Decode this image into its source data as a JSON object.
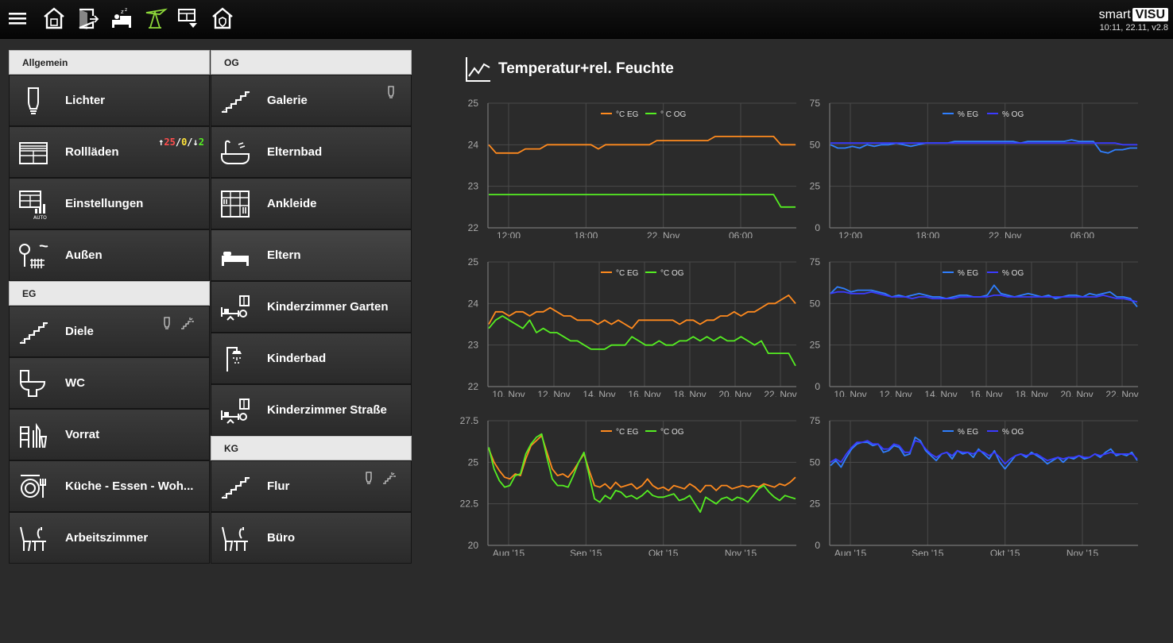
{
  "brand": {
    "word1": "smart",
    "word2": "VISU",
    "version": "10:11, 22.11, v2.8"
  },
  "nav_icons": [
    "menu-icon",
    "house-icon",
    "door-exit-icon",
    "bed-sleep-icon",
    "garden-umbrella-icon",
    "window-shutter-icon",
    "house-shield-icon"
  ],
  "accent": "#8ed93a",
  "columns": {
    "left": {
      "sections": [
        {
          "title": "Allgemein",
          "rooms": [
            {
              "label": "Lichter",
              "icon": "light-bulb-icon"
            },
            {
              "label": "Rollläden",
              "icon": "shutter-icon",
              "status": {
                "up": "↑",
                "up_val": "25",
                "sep1": "/",
                "mid_val": "0",
                "sep2": "/",
                "down": "↓",
                "down_val": "2"
              }
            },
            {
              "label": "Einstellungen",
              "icon": "shutter-auto-icon"
            },
            {
              "label": "Außen",
              "icon": "garden-icon"
            }
          ]
        },
        {
          "title": "EG",
          "rooms": [
            {
              "label": "Diele",
              "icon": "stairs-icon",
              "indicators": [
                "bulb-indicator-icon",
                "stairs-light-indicator-icon"
              ]
            },
            {
              "label": "WC",
              "icon": "toilet-icon"
            },
            {
              "label": "Vorrat",
              "icon": "storage-icon"
            },
            {
              "label": "Küche - Essen - Woh...",
              "icon": "kitchen-icon"
            },
            {
              "label": "Arbeitszimmer",
              "icon": "desk-icon"
            }
          ]
        }
      ]
    },
    "right": {
      "sections": [
        {
          "title": "OG",
          "rooms": [
            {
              "label": "Galerie",
              "icon": "stairs-icon",
              "indicators": [
                "bulb-indicator-icon"
              ]
            },
            {
              "label": "Elternbad",
              "icon": "bathtub-icon"
            },
            {
              "label": "Ankleide",
              "icon": "wardrobe-icon"
            },
            {
              "label": "Eltern",
              "icon": "bed-icon",
              "active": true
            },
            {
              "label": "Kinderzimmer Garten",
              "icon": "kids-room-icon"
            },
            {
              "label": "Kinderbad",
              "icon": "shower-icon"
            },
            {
              "label": "Kinderzimmer Straße",
              "icon": "kids-room-icon"
            }
          ]
        },
        {
          "title": "KG",
          "rooms": [
            {
              "label": "Flur",
              "icon": "stairs-icon",
              "indicators": [
                "bulb-indicator-icon",
                "stairs-light-indicator-icon"
              ]
            },
            {
              "label": "Büro",
              "icon": "desk-icon"
            }
          ]
        }
      ]
    }
  },
  "panel": {
    "title": "Temperatur+rel. Feuchte",
    "icon": "line-chart-icon"
  },
  "colors": {
    "eg_temp": "#ff8a1e",
    "og_temp": "#55ee22",
    "eg_hum": "#2f7fff",
    "og_hum": "#3b3bff",
    "grid": "#4a4a4a",
    "axis": "#777777",
    "tick": "#aaaaaa"
  },
  "chart_data": [
    {
      "type": "line",
      "title": "",
      "legend": [
        "°C EG",
        "° C OG"
      ],
      "legend_position": "top-center",
      "ylim": [
        22,
        25
      ],
      "yticks": [
        "22",
        "23",
        "24",
        "25"
      ],
      "xticks": [
        "12:00",
        "18:00",
        "22. Nov",
        "06:00"
      ],
      "grid": true,
      "series": [
        {
          "name": "°C EG",
          "values": [
            24,
            23.8,
            23.8,
            23.8,
            23.8,
            23.9,
            23.9,
            23.9,
            24,
            24,
            24,
            24,
            24,
            24,
            24,
            23.9,
            24,
            24,
            24,
            24,
            24,
            24,
            24,
            24.1,
            24.1,
            24.1,
            24.1,
            24.1,
            24.1,
            24.1,
            24.1,
            24.2,
            24.2,
            24.2,
            24.2,
            24.2,
            24.2,
            24.2,
            24.2,
            24.2,
            24,
            24,
            24
          ]
        },
        {
          "name": "° C OG",
          "values": [
            22.8,
            22.8,
            22.8,
            22.8,
            22.8,
            22.8,
            22.8,
            22.8,
            22.8,
            22.8,
            22.8,
            22.8,
            22.8,
            22.8,
            22.8,
            22.8,
            22.8,
            22.8,
            22.8,
            22.8,
            22.8,
            22.8,
            22.8,
            22.8,
            22.8,
            22.8,
            22.8,
            22.8,
            22.8,
            22.8,
            22.8,
            22.8,
            22.8,
            22.8,
            22.8,
            22.8,
            22.8,
            22.8,
            22.8,
            22.8,
            22.5,
            22.5,
            22.5
          ]
        }
      ]
    },
    {
      "type": "line",
      "title": "",
      "legend": [
        "% EG",
        "% OG"
      ],
      "legend_position": "top-center",
      "ylim": [
        0,
        75
      ],
      "yticks": [
        "0",
        "25",
        "50",
        "75"
      ],
      "xticks": [
        "12:00",
        "18:00",
        "22. Nov",
        "06:00"
      ],
      "grid": true,
      "series": [
        {
          "name": "% EG",
          "values": [
            50,
            48,
            48,
            49,
            48,
            50,
            49,
            50,
            50,
            51,
            50,
            49,
            50,
            51,
            51,
            51,
            51,
            52,
            52,
            52,
            52,
            52,
            52,
            52,
            52,
            52,
            51,
            52,
            52,
            52,
            52,
            52,
            52,
            53,
            52,
            52,
            52,
            46,
            45,
            47,
            47,
            48,
            48
          ]
        },
        {
          "name": "% OG",
          "values": [
            51,
            51,
            51,
            51,
            51,
            51,
            51,
            51,
            51,
            51,
            51,
            51,
            51,
            51,
            51,
            51,
            51,
            51,
            51,
            51,
            51,
            51,
            51,
            51,
            51,
            51,
            51,
            51,
            51,
            51,
            51,
            51,
            51,
            51,
            51,
            51,
            51,
            51,
            51,
            51,
            50,
            50,
            50
          ]
        }
      ]
    },
    {
      "type": "line",
      "title": "",
      "legend": [
        "°C EG",
        "°C OG"
      ],
      "legend_position": "top-center",
      "ylim": [
        22,
        25
      ],
      "yticks": [
        "22",
        "23",
        "24",
        "25"
      ],
      "xticks": [
        "10. Nov",
        "12. Nov",
        "14. Nov",
        "16. Nov",
        "18. Nov",
        "20. Nov",
        "22. Nov"
      ],
      "grid": true,
      "series": [
        {
          "name": "°C EG",
          "values": [
            23.5,
            23.8,
            23.8,
            23.7,
            23.8,
            23.8,
            23.7,
            23.8,
            23.8,
            23.9,
            23.8,
            23.7,
            23.7,
            23.6,
            23.6,
            23.6,
            23.5,
            23.6,
            23.5,
            23.6,
            23.5,
            23.4,
            23.6,
            23.6,
            23.6,
            23.6,
            23.6,
            23.6,
            23.5,
            23.6,
            23.6,
            23.5,
            23.6,
            23.6,
            23.7,
            23.7,
            23.8,
            23.7,
            23.8,
            23.8,
            23.9,
            24.0,
            24.0,
            24.1,
            24.2,
            24.0
          ]
        },
        {
          "name": "°C OG",
          "values": [
            23.4,
            23.6,
            23.7,
            23.6,
            23.5,
            23.4,
            23.6,
            23.3,
            23.4,
            23.3,
            23.3,
            23.2,
            23.1,
            23.1,
            23.0,
            22.9,
            22.9,
            22.9,
            23.0,
            23.0,
            23.0,
            23.2,
            23.1,
            23.0,
            23.0,
            23.1,
            23.0,
            23.0,
            23.1,
            23.1,
            23.2,
            23.1,
            23.2,
            23.1,
            23.2,
            23.1,
            23.1,
            23.2,
            23.1,
            23.0,
            23.1,
            22.8,
            22.8,
            22.8,
            22.8,
            22.5
          ]
        }
      ]
    },
    {
      "type": "line",
      "title": "",
      "legend": [
        "% EG",
        "% OG"
      ],
      "legend_position": "top-center",
      "ylim": [
        0,
        75
      ],
      "yticks": [
        "0",
        "25",
        "50",
        "75"
      ],
      "xticks": [
        "10. Nov",
        "12. Nov",
        "14. Nov",
        "16. Nov",
        "18. Nov",
        "20. Nov",
        "22. Nov"
      ],
      "grid": true,
      "series": [
        {
          "name": "% EG",
          "values": [
            56,
            60,
            59,
            57,
            58,
            58,
            58,
            57,
            56,
            54,
            55,
            54,
            55,
            56,
            55,
            54,
            54,
            53,
            54,
            55,
            55,
            54,
            54,
            55,
            61,
            56,
            55,
            54,
            55,
            56,
            55,
            54,
            55,
            53,
            54,
            55,
            55,
            54,
            56,
            55,
            56,
            57,
            54,
            54,
            53,
            48
          ]
        },
        {
          "name": "% OG",
          "values": [
            56,
            57,
            57,
            56,
            56,
            56,
            57,
            56,
            55,
            54,
            54,
            54,
            53,
            54,
            54,
            53,
            53,
            53,
            53,
            54,
            54,
            54,
            54,
            54,
            55,
            55,
            54,
            54,
            54,
            54,
            54,
            54,
            54,
            54,
            54,
            54,
            54,
            54,
            54,
            54,
            55,
            54,
            53,
            53,
            52,
            51
          ]
        }
      ]
    },
    {
      "type": "line",
      "title": "",
      "legend": [
        "°C EG",
        "°C OG"
      ],
      "legend_position": "top-center",
      "ylim": [
        20,
        27.5
      ],
      "yticks": [
        "20",
        "22.5",
        "25",
        "27.5"
      ],
      "xticks": [
        "Aug '15",
        "Sep '15",
        "Okt '15",
        "Nov '15"
      ],
      "grid": true,
      "series": [
        {
          "name": "°C EG",
          "values": [
            25.8,
            25.0,
            24.5,
            24.1,
            24.0,
            24.3,
            24.2,
            25.2,
            26.0,
            26.3,
            26.6,
            25.6,
            24.6,
            24.2,
            24.3,
            24.1,
            24.5,
            25.0,
            25.5,
            24.5,
            23.6,
            23.5,
            23.7,
            23.4,
            23.8,
            23.5,
            23.6,
            23.7,
            23.4,
            23.6,
            24.0,
            23.6,
            23.4,
            23.5,
            23.3,
            23.6,
            23.5,
            23.4,
            23.7,
            23.5,
            23.2,
            23.6,
            23.6,
            23.3,
            23.6,
            23.6,
            23.4,
            23.5,
            23.6,
            23.5,
            23.6,
            23.5,
            23.7,
            23.6,
            23.5,
            23.7,
            23.6,
            23.8,
            24.1
          ]
        },
        {
          "name": "°C OG",
          "values": [
            25.9,
            24.6,
            23.9,
            23.5,
            23.6,
            24.2,
            24.3,
            25.5,
            26.1,
            26.5,
            26.7,
            25.3,
            24.0,
            23.6,
            23.6,
            23.5,
            24.2,
            25.0,
            25.6,
            24.2,
            22.8,
            22.6,
            23.0,
            22.8,
            23.3,
            23.2,
            22.9,
            23.0,
            22.8,
            23.0,
            23.3,
            23.0,
            22.9,
            22.9,
            23.0,
            23.1,
            22.7,
            22.8,
            23.0,
            22.5,
            22.0,
            22.9,
            22.7,
            22.5,
            22.8,
            22.9,
            22.7,
            22.9,
            22.8,
            22.6,
            23.0,
            23.4,
            23.6,
            23.2,
            22.9,
            22.7,
            23.0,
            22.9,
            22.8
          ]
        }
      ]
    },
    {
      "type": "line",
      "title": "",
      "legend": [
        "% EG",
        "% OG"
      ],
      "legend_position": "top-center",
      "ylim": [
        0,
        75
      ],
      "yticks": [
        "0",
        "25",
        "50",
        "75"
      ],
      "xticks": [
        "Aug '15",
        "Sep '15",
        "Okt '15",
        "Nov '15"
      ],
      "grid": true,
      "series": [
        {
          "name": "% EG",
          "values": [
            48,
            51,
            47,
            53,
            58,
            61,
            62,
            62,
            60,
            61,
            56,
            57,
            60,
            59,
            54,
            55,
            65,
            63,
            57,
            54,
            51,
            55,
            56,
            52,
            57,
            55,
            56,
            53,
            58,
            55,
            52,
            57,
            50,
            46,
            50,
            54,
            55,
            53,
            56,
            54,
            52,
            49,
            51,
            53,
            50,
            53,
            52,
            54,
            52,
            53,
            55,
            53,
            56,
            58,
            54,
            55,
            54,
            56,
            51
          ]
        },
        {
          "name": "% OG",
          "values": [
            50,
            52,
            50,
            55,
            59,
            62,
            62,
            63,
            61,
            61,
            58,
            58,
            61,
            60,
            56,
            56,
            63,
            62,
            58,
            55,
            53,
            55,
            56,
            54,
            57,
            56,
            56,
            55,
            57,
            56,
            54,
            56,
            53,
            49,
            52,
            54,
            55,
            54,
            55,
            55,
            53,
            51,
            52,
            53,
            52,
            53,
            53,
            54,
            53,
            53,
            55,
            54,
            55,
            56,
            55,
            55,
            55,
            55,
            52
          ]
        }
      ]
    }
  ]
}
